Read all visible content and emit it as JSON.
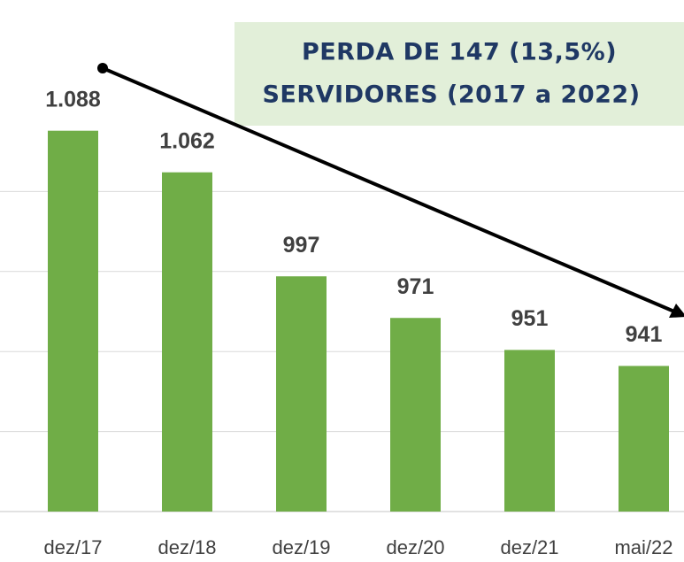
{
  "chart_data": {
    "type": "bar",
    "annotation": [
      "PERDA DE 147 (13,5%)",
      "SERVIDORES (2017 a 2022)"
    ],
    "categories": [
      "dez/17",
      "dez/18",
      "dez/19",
      "dez/20",
      "dez/21",
      "mai/22"
    ],
    "values": [
      1088,
      1062,
      997,
      971,
      951,
      941
    ],
    "value_labels": [
      "1.088",
      "1.062",
      "997",
      "971",
      "951",
      "941"
    ],
    "color": "#70ad47",
    "ylim": [
      850,
      1100
    ],
    "yticks": [
      900,
      950,
      1000,
      1050
    ],
    "grid": true
  }
}
